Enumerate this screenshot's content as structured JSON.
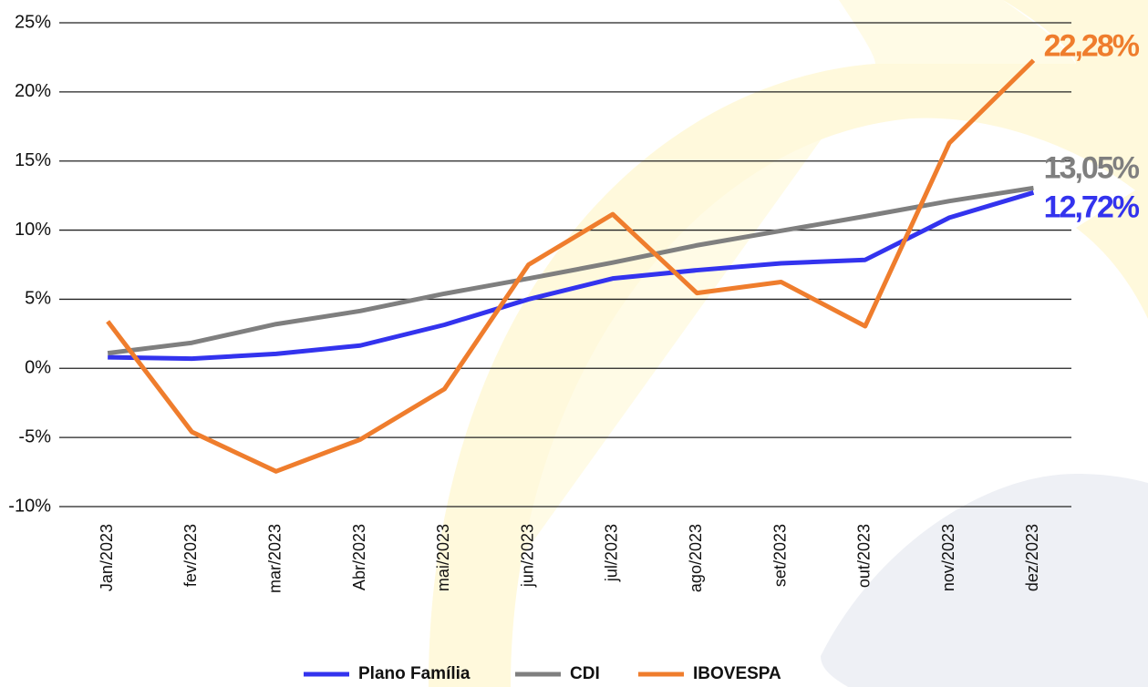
{
  "chart_data": {
    "type": "line",
    "categories": [
      "Jan/2023",
      "fev/2023",
      "mar/2023",
      "Abr/2023",
      "mai/2023",
      "jun/2023",
      "jul/2023",
      "ago/2023",
      "set/2023",
      "out/2023",
      "nov/2023",
      "dez/2023"
    ],
    "series": [
      {
        "name": "Plano Família",
        "color": "#3333ee",
        "values": [
          0.8,
          0.7,
          1.05,
          1.65,
          3.15,
          5.0,
          6.5,
          7.1,
          7.6,
          7.85,
          10.9,
          12.72
        ],
        "value_labels": [
          null,
          null,
          null,
          null,
          null,
          null,
          null,
          null,
          null,
          null,
          null,
          "12,72%"
        ]
      },
      {
        "name": "CDI",
        "color": "#7f7f7f",
        "values": [
          1.1,
          1.85,
          3.2,
          4.15,
          5.4,
          6.5,
          7.65,
          8.9,
          9.95,
          11.0,
          12.1,
          13.05
        ],
        "value_labels": [
          null,
          null,
          null,
          null,
          null,
          null,
          null,
          null,
          null,
          null,
          null,
          "13,05%"
        ]
      },
      {
        "name": "IBOVESPA",
        "color": "#ef7d2d",
        "values": [
          3.4,
          -4.6,
          -7.45,
          -5.15,
          -1.5,
          7.5,
          11.15,
          5.45,
          6.25,
          3.05,
          16.3,
          22.28
        ],
        "value_labels": [
          null,
          null,
          null,
          null,
          null,
          null,
          null,
          null,
          null,
          null,
          null,
          "22,28%"
        ]
      }
    ],
    "ylim": [
      -10,
      25
    ],
    "yticks": [
      {
        "value": -10,
        "label": "-10%"
      },
      {
        "value": -5,
        "label": "-5%"
      },
      {
        "value": 0,
        "label": "0%"
      },
      {
        "value": 5,
        "label": "5%"
      },
      {
        "value": 10,
        "label": "10%"
      },
      {
        "value": 15,
        "label": "15%"
      },
      {
        "value": 20,
        "label": "20%"
      },
      {
        "value": 25,
        "label": "25%"
      }
    ],
    "grid": true,
    "legend": "bottom"
  }
}
